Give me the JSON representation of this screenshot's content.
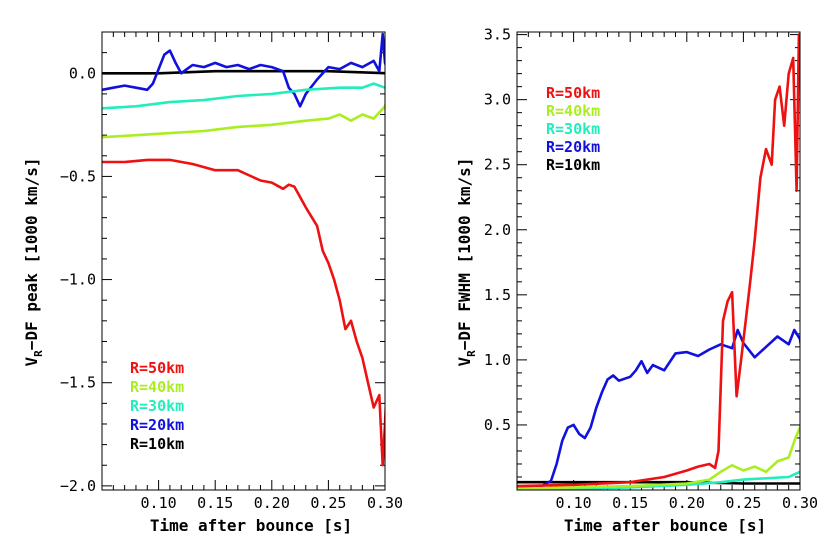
{
  "chart_data": [
    {
      "type": "line",
      "xlabel": "Time after bounce [s]",
      "ylabel": "V_R-DF peak [1000 km/s]",
      "ylabel_main": "V",
      "ylabel_sub": "R",
      "ylabel_rest": "−DF peak [1000 km/s]",
      "xlim": [
        0.05,
        0.3
      ],
      "ylim": [
        -2.02,
        0.2
      ],
      "xticks": [
        0.1,
        0.15,
        0.2,
        0.25,
        0.3
      ],
      "xtick_labels": [
        "0.10",
        "0.15",
        "0.20",
        "0.25",
        "0.30"
      ],
      "yticks": [
        -2.0,
        -1.5,
        -1.0,
        -0.5,
        0.0
      ],
      "ytick_labels": [
        "−2.0",
        "−1.5",
        "−1.0",
        "−0.5",
        "0.0"
      ],
      "legend_position": "bottom-left",
      "series": [
        {
          "name": "R=50km",
          "color": "#ee1111",
          "x": [
            0.05,
            0.07,
            0.09,
            0.11,
            0.13,
            0.15,
            0.17,
            0.19,
            0.2,
            0.21,
            0.215,
            0.22,
            0.225,
            0.23,
            0.24,
            0.245,
            0.25,
            0.255,
            0.26,
            0.265,
            0.27,
            0.275,
            0.28,
            0.285,
            0.29,
            0.295,
            0.298,
            0.3,
            0.302
          ],
          "y": [
            -0.43,
            -0.43,
            -0.42,
            -0.42,
            -0.44,
            -0.47,
            -0.47,
            -0.52,
            -0.53,
            -0.56,
            -0.54,
            -0.55,
            -0.6,
            -0.65,
            -0.74,
            -0.86,
            -0.92,
            -1.0,
            -1.1,
            -1.24,
            -1.2,
            -1.3,
            -1.38,
            -1.5,
            -1.62,
            -1.56,
            -1.9,
            -1.7,
            -1.46
          ]
        },
        {
          "name": "R=40km",
          "color": "#aaee22",
          "x": [
            0.05,
            0.08,
            0.11,
            0.14,
            0.17,
            0.2,
            0.23,
            0.25,
            0.26,
            0.27,
            0.28,
            0.29,
            0.3,
            0.302
          ],
          "y": [
            -0.31,
            -0.3,
            -0.29,
            -0.28,
            -0.26,
            -0.25,
            -0.23,
            -0.22,
            -0.2,
            -0.23,
            -0.2,
            -0.22,
            -0.16,
            -0.12
          ]
        },
        {
          "name": "R=30km",
          "color": "#22eebb",
          "x": [
            0.05,
            0.08,
            0.11,
            0.14,
            0.17,
            0.2,
            0.23,
            0.26,
            0.28,
            0.29,
            0.3,
            0.302
          ],
          "y": [
            -0.17,
            -0.16,
            -0.14,
            -0.13,
            -0.11,
            -0.1,
            -0.08,
            -0.07,
            -0.07,
            -0.05,
            -0.07,
            -0.06
          ]
        },
        {
          "name": "R=20km",
          "color": "#1111dd",
          "x": [
            0.05,
            0.06,
            0.07,
            0.08,
            0.09,
            0.095,
            0.1,
            0.105,
            0.11,
            0.115,
            0.12,
            0.125,
            0.13,
            0.14,
            0.15,
            0.16,
            0.17,
            0.18,
            0.19,
            0.2,
            0.21,
            0.215,
            0.22,
            0.225,
            0.23,
            0.24,
            0.25,
            0.26,
            0.27,
            0.28,
            0.29,
            0.295,
            0.298,
            0.3,
            0.302
          ],
          "y": [
            -0.08,
            -0.07,
            -0.06,
            -0.07,
            -0.08,
            -0.05,
            0.02,
            0.09,
            0.11,
            0.05,
            0.0,
            0.02,
            0.04,
            0.03,
            0.05,
            0.03,
            0.04,
            0.02,
            0.04,
            0.03,
            0.01,
            -0.07,
            -0.1,
            -0.16,
            -0.1,
            -0.03,
            0.03,
            0.02,
            0.05,
            0.03,
            0.06,
            0.01,
            0.19,
            0.05,
            0.02
          ]
        },
        {
          "name": "R=10km",
          "color": "#000000",
          "x": [
            0.05,
            0.1,
            0.15,
            0.2,
            0.25,
            0.302
          ],
          "y": [
            0.0,
            0.0,
            0.01,
            0.01,
            0.01,
            0.0
          ]
        }
      ]
    },
    {
      "type": "line",
      "xlabel": "Time after bounce [s]",
      "ylabel": "V_R-DF FWHM [1000 km/s]",
      "ylabel_main": "V",
      "ylabel_sub": "R",
      "ylabel_rest": "−DF FWHM [1000 km/s]",
      "xlim": [
        0.05,
        0.3
      ],
      "ylim": [
        0.0,
        3.52
      ],
      "xticks": [
        0.1,
        0.15,
        0.2,
        0.25,
        0.3
      ],
      "xtick_labels": [
        "0.10",
        "0.15",
        "0.20",
        "0.25",
        "0.30"
      ],
      "yticks": [
        0.5,
        1.0,
        1.5,
        2.0,
        2.5,
        3.0,
        3.5
      ],
      "ytick_labels": [
        "0.5",
        "1.0",
        "1.5",
        "2.0",
        "2.5",
        "3.0",
        "3.5"
      ],
      "legend_position": "top-left",
      "series": [
        {
          "name": "R=50km",
          "color": "#ee1111",
          "x": [
            0.05,
            0.1,
            0.15,
            0.18,
            0.2,
            0.21,
            0.22,
            0.225,
            0.228,
            0.232,
            0.236,
            0.24,
            0.244,
            0.248,
            0.252,
            0.256,
            0.26,
            0.265,
            0.27,
            0.275,
            0.278,
            0.282,
            0.286,
            0.29,
            0.294,
            0.297,
            0.299,
            0.301
          ],
          "y": [
            0.03,
            0.04,
            0.06,
            0.1,
            0.15,
            0.18,
            0.2,
            0.17,
            0.3,
            1.3,
            1.45,
            1.52,
            0.72,
            1.0,
            1.3,
            1.6,
            1.92,
            2.4,
            2.62,
            2.5,
            3.0,
            3.1,
            2.8,
            3.2,
            3.32,
            2.3,
            3.5,
            3.48
          ]
        },
        {
          "name": "R=40km",
          "color": "#aaee22",
          "x": [
            0.05,
            0.1,
            0.15,
            0.2,
            0.22,
            0.23,
            0.24,
            0.25,
            0.26,
            0.27,
            0.28,
            0.29,
            0.296,
            0.3,
            0.302
          ],
          "y": [
            0.01,
            0.02,
            0.03,
            0.05,
            0.08,
            0.14,
            0.19,
            0.15,
            0.18,
            0.14,
            0.22,
            0.25,
            0.4,
            0.48,
            0.5
          ]
        },
        {
          "name": "R=30km",
          "color": "#22eebb",
          "x": [
            0.05,
            0.1,
            0.15,
            0.2,
            0.23,
            0.25,
            0.27,
            0.29,
            0.3,
            0.302
          ],
          "y": [
            0.01,
            0.01,
            0.02,
            0.04,
            0.06,
            0.08,
            0.09,
            0.1,
            0.14,
            0.12
          ]
        },
        {
          "name": "R=20km",
          "color": "#1111dd",
          "x": [
            0.05,
            0.07,
            0.08,
            0.085,
            0.09,
            0.095,
            0.1,
            0.105,
            0.11,
            0.115,
            0.12,
            0.125,
            0.13,
            0.135,
            0.14,
            0.15,
            0.155,
            0.16,
            0.165,
            0.17,
            0.18,
            0.19,
            0.2,
            0.21,
            0.22,
            0.23,
            0.24,
            0.245,
            0.25,
            0.26,
            0.27,
            0.28,
            0.29,
            0.295,
            0.3,
            0.302
          ],
          "y": [
            0.02,
            0.02,
            0.07,
            0.2,
            0.38,
            0.48,
            0.5,
            0.43,
            0.4,
            0.48,
            0.63,
            0.75,
            0.85,
            0.88,
            0.84,
            0.87,
            0.92,
            0.99,
            0.9,
            0.96,
            0.92,
            1.05,
            1.06,
            1.03,
            1.08,
            1.12,
            1.09,
            1.23,
            1.13,
            1.02,
            1.1,
            1.18,
            1.12,
            1.23,
            1.16,
            1.04
          ]
        },
        {
          "name": "R=10km",
          "color": "#000000",
          "x": [
            0.05,
            0.1,
            0.15,
            0.2,
            0.25,
            0.302
          ],
          "y": [
            0.06,
            0.06,
            0.06,
            0.06,
            0.05,
            0.05
          ]
        }
      ]
    }
  ]
}
